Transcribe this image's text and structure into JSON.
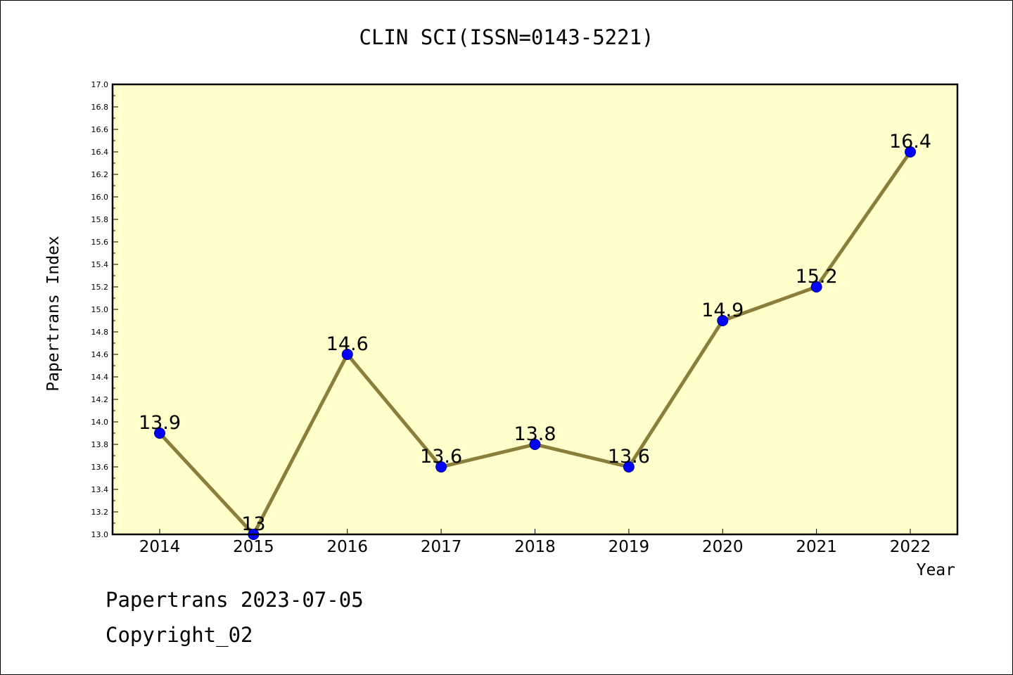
{
  "chart_data": {
    "type": "line",
    "title": "CLIN SCI(ISSN=0143-5221)",
    "xlabel": "Year",
    "ylabel": "Papertrans Index",
    "x": [
      "2014",
      "2015",
      "2016",
      "2017",
      "2018",
      "2019",
      "2020",
      "2021",
      "2022"
    ],
    "series": [
      {
        "values": [
          13.9,
          13.0,
          14.6,
          13.6,
          13.8,
          13.6,
          14.9,
          15.2,
          16.4
        ],
        "data_labels": [
          "13.9",
          "13",
          "14.6",
          "13.6",
          "13.8",
          "13.6",
          "14.9",
          "15.2",
          "16.4"
        ]
      }
    ],
    "ylim": [
      13.0,
      17.0
    ],
    "yticks": [
      "13.0",
      "13.2",
      "13.4",
      "13.6",
      "13.8",
      "14.0",
      "14.2",
      "14.4",
      "14.6",
      "14.8",
      "15.0",
      "15.2",
      "15.4",
      "15.6",
      "15.8",
      "16.0",
      "16.2",
      "16.4",
      "16.6",
      "16.8",
      "17.0"
    ],
    "grid": false,
    "legend": "none",
    "colors": {
      "plot_background": "#ffffcc",
      "line": "#8b7d3a",
      "marker": "#0000ff"
    }
  },
  "footer": {
    "line1": "Papertrans 2023-07-05",
    "line2": "Copyright_02"
  }
}
